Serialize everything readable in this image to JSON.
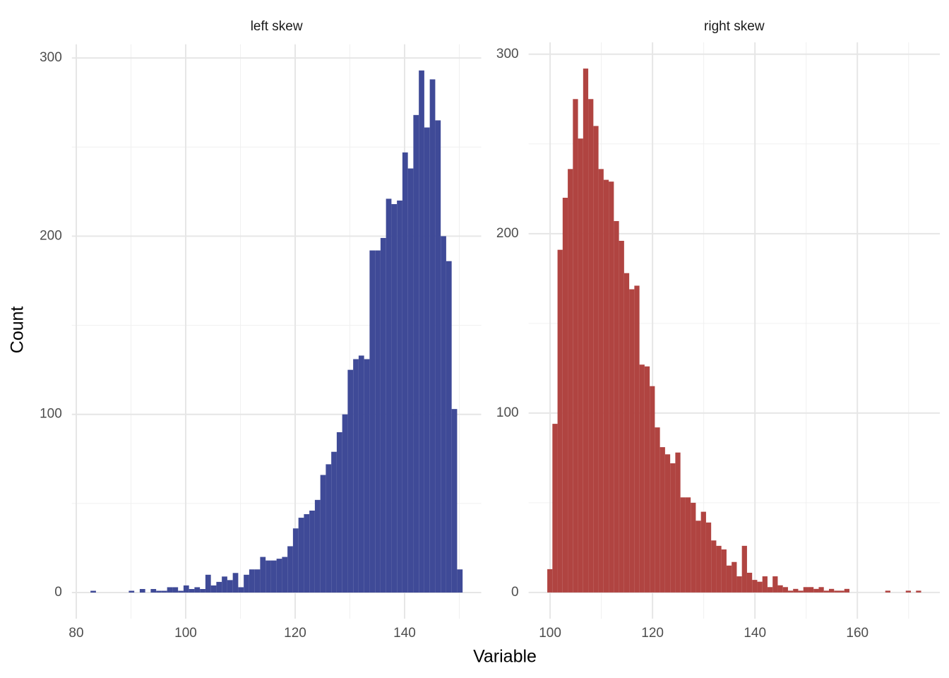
{
  "xlabel": "Variable",
  "ylabel": "Count",
  "chart_data": [
    {
      "type": "histogram",
      "title": "left skew",
      "color": "#3f4a97",
      "grid": true,
      "bins": [
        82.6,
        83.6,
        84.6,
        85.6,
        86.6,
        87.6,
        88.6,
        89.6,
        90.6,
        91.6,
        92.6,
        93.6,
        94.6,
        95.6,
        96.6,
        97.6,
        98.6,
        99.6,
        100.6,
        101.6,
        102.6,
        103.6,
        104.6,
        105.6,
        106.6,
        107.6,
        108.6,
        109.6,
        110.6,
        111.6,
        112.6,
        113.6,
        114.6,
        115.6,
        116.6,
        117.6,
        118.6,
        119.6,
        120.6,
        121.6,
        122.6,
        123.6,
        124.6,
        125.6,
        126.6,
        127.6,
        128.6,
        129.6,
        130.6,
        131.6,
        132.6,
        133.6,
        134.6,
        135.6,
        136.6,
        137.6,
        138.6,
        139.6,
        140.6,
        141.6,
        142.6,
        143.6,
        144.6,
        145.6,
        146.6,
        147.6,
        148.6,
        149.6,
        150.6
      ],
      "values": [
        1,
        0,
        0,
        0,
        0,
        0,
        0,
        1,
        0,
        2,
        0,
        2,
        1,
        1,
        3,
        3,
        1,
        4,
        2,
        3,
        2,
        10,
        4,
        6,
        9,
        7,
        11,
        3,
        10,
        13,
        13,
        20,
        18,
        18,
        19,
        20,
        26,
        36,
        42,
        44,
        46,
        52,
        66,
        72,
        79,
        90,
        100,
        125,
        131,
        133,
        131,
        192,
        192,
        199,
        221,
        218,
        220,
        247,
        238,
        268,
        293,
        261,
        288,
        265,
        200,
        186,
        103,
        13
      ],
      "xlim": [
        79.2,
        154
      ],
      "ylim": [
        -14.65,
        307.65
      ],
      "xticks": [
        80,
        100,
        120,
        140
      ],
      "yticks": [
        0,
        100,
        200,
        300
      ],
      "xminor": [
        90,
        110,
        130,
        150
      ],
      "yminor": [
        50,
        150,
        250
      ]
    },
    {
      "type": "histogram",
      "title": "right skew",
      "color": "#b04441",
      "grid": true,
      "bins": [
        99.45,
        100.45,
        101.45,
        102.45,
        103.45,
        104.45,
        105.45,
        106.45,
        107.45,
        108.45,
        109.45,
        110.45,
        111.45,
        112.45,
        113.45,
        114.45,
        115.45,
        116.45,
        117.45,
        118.45,
        119.45,
        120.45,
        121.45,
        122.45,
        123.45,
        124.45,
        125.45,
        126.45,
        127.45,
        128.45,
        129.45,
        130.45,
        131.45,
        132.45,
        133.45,
        134.45,
        135.45,
        136.45,
        137.45,
        138.45,
        139.45,
        140.45,
        141.45,
        142.45,
        143.45,
        144.45,
        145.45,
        146.45,
        147.45,
        148.45,
        149.45,
        150.45,
        151.45,
        152.45,
        153.45,
        154.45,
        155.45,
        156.45,
        157.45,
        158.45,
        159.45,
        160.45,
        161.45,
        162.45,
        163.45,
        164.45,
        165.45,
        166.45,
        167.45,
        168.45,
        169.45,
        170.45,
        171.45,
        172.45
      ],
      "values": [
        13,
        94,
        191,
        220,
        236,
        275,
        253,
        292,
        275,
        260,
        236,
        230,
        229,
        207,
        196,
        178,
        169,
        171,
        127,
        126,
        115,
        92,
        81,
        77,
        72,
        78,
        53,
        53,
        50,
        40,
        45,
        39,
        29,
        26,
        24,
        15,
        17,
        9,
        26,
        11,
        7,
        6,
        9,
        3,
        9,
        4,
        3,
        1,
        2,
        1,
        3,
        3,
        2,
        3,
        1,
        2,
        1,
        1,
        2,
        0,
        0,
        0,
        0,
        0,
        0,
        0,
        1,
        0,
        0,
        0,
        1,
        0,
        1
      ],
      "xlim": [
        95.8,
        176.1
      ],
      "ylim": [
        -14.6,
        306.6
      ],
      "xticks": [
        100,
        120,
        140,
        160
      ],
      "yticks": [
        0,
        100,
        200,
        300
      ],
      "xminor": [
        110,
        130,
        150,
        170
      ],
      "yminor": [
        50,
        150,
        250
      ]
    }
  ]
}
